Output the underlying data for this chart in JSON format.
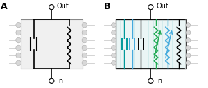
{
  "fig_width": 3.0,
  "fig_height": 1.27,
  "dpi": 100,
  "bg_color": "#ffffff",
  "label_A": "A",
  "label_B": "B",
  "label_Out": "Out",
  "label_In": "In",
  "mem_color": "#e8e8e8",
  "mem_edge": "#888888",
  "lip_color": "#d8d8d8",
  "lip_edge": "#aaaaaa",
  "tail_color": "#cccccc",
  "green_color": "#22aa55",
  "blue_color": "#44aadd",
  "teal_color": "#009999",
  "black": "#000000"
}
